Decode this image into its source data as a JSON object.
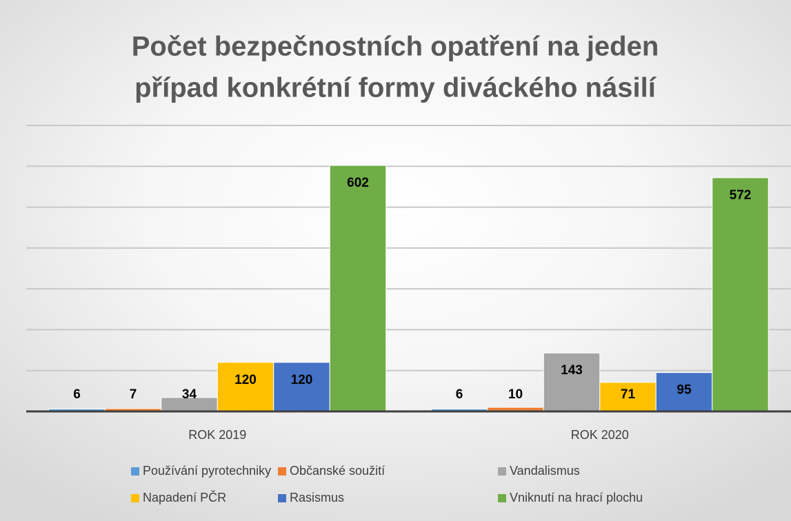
{
  "chart_data": {
    "type": "bar",
    "title": [
      "Počet bezpečnostních opatření na jeden",
      "případ konkrétní formy diváckého násilí"
    ],
    "categories": [
      "ROK 2019",
      "ROK 2020"
    ],
    "series": [
      {
        "name": "Používání pyrotechniky",
        "color": "#5b9bd5",
        "values": [
          6,
          6
        ]
      },
      {
        "name": "Občanské soužití",
        "color": "#ed7d31",
        "values": [
          7,
          10
        ]
      },
      {
        "name": "Vandalismus",
        "color": "#a5a5a5",
        "values": [
          34,
          143
        ]
      },
      {
        "name": "Napadení PČR",
        "color": "#ffc000",
        "values": [
          120,
          71
        ]
      },
      {
        "name": "Rasismus",
        "color": "#4472c4",
        "values": [
          120,
          95
        ]
      },
      {
        "name": "Vniknutí na hrací plochu",
        "color": "#70ad47",
        "values": [
          602,
          572
        ]
      }
    ],
    "ylim": [
      0,
      700
    ],
    "yticks": [
      0,
      100,
      200,
      300,
      400,
      500,
      600,
      700
    ],
    "grid": true
  }
}
